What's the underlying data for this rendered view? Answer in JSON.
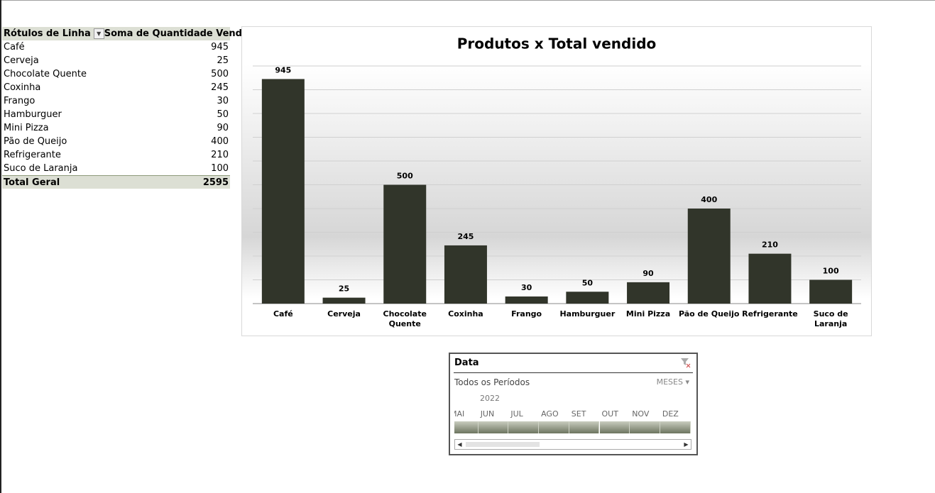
{
  "pivot": {
    "header": [
      "Rótulos de Linha",
      "Soma de Quantidade Vendida"
    ],
    "rows": [
      [
        "Café",
        945
      ],
      [
        "Cerveja",
        25
      ],
      [
        "Chocolate Quente",
        500
      ],
      [
        "Coxinha",
        245
      ],
      [
        "Frango",
        30
      ],
      [
        "Hamburguer",
        50
      ],
      [
        "Mini Pizza",
        90
      ],
      [
        "Pão de Queijo",
        400
      ],
      [
        "Refrigerante",
        210
      ],
      [
        "Suco de Laranja",
        100
      ]
    ],
    "total": [
      "Total Geral",
      2595
    ]
  },
  "chart_data": {
    "type": "bar",
    "title": "Produtos x Total vendido",
    "categories": [
      "Café",
      "Cerveja",
      "Chocolate Quente",
      "Coxinha",
      "Frango",
      "Hamburguer",
      "Mini Pizza",
      "Pão de Queijo",
      "Refrigerante",
      "Suco de Laranja"
    ],
    "values": [
      945,
      25,
      500,
      245,
      30,
      50,
      90,
      400,
      210,
      100
    ],
    "color": "#31352a",
    "ylim": [
      0,
      1000
    ],
    "yticks": [
      0,
      100,
      200,
      300,
      400,
      500,
      600,
      700,
      800,
      900,
      1000
    ],
    "grid": true
  },
  "slicer": {
    "title": "Data",
    "period": "Todos os Períodos",
    "level": "MESES",
    "year": "2022",
    "months": [
      "MAI",
      "JUN",
      "JUL",
      "AGO",
      "SET",
      "OUT",
      "NOV",
      "DEZ"
    ]
  }
}
